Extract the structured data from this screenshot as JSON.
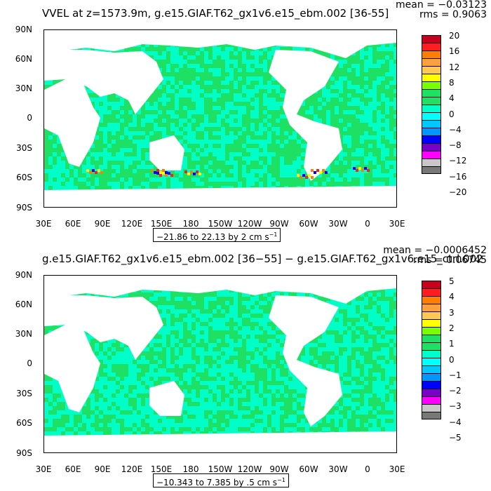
{
  "panels": [
    {
      "title": "VVEL at z=1573.9m, g.e15.GIAF.T62_gx1v6.e15_ebm.002 [36-55]",
      "mean": "mean = −0.03123",
      "rms": "rms = 0.9063",
      "range": "−21.86 to 22.13 by 2 cm s",
      "range_sup": "−1",
      "legend_labels": [
        "20",
        "16",
        "12",
        "8",
        "4",
        "0",
        "−4",
        "−8",
        "−12",
        "−16",
        "−20"
      ],
      "legend_colors": [
        "#c8001e",
        "#ff1e1e",
        "#ff7d00",
        "#ffa03c",
        "#ffc850",
        "#ffff00",
        "#78ff00",
        "#1ee164",
        "#1ee164",
        "#00ffc8",
        "#00ffff",
        "#00c8ff",
        "#0096ff",
        "#0000ff",
        "#7800c8",
        "#ff00ff",
        "#c8c8c8",
        "#787878"
      ],
      "accent_colors": [
        "#ffff00",
        "#ff7d00",
        "#0000ff",
        "#ff1e1e"
      ]
    },
    {
      "title": "g.e15.GIAF.T62_gx1v6.e15_ebm.002 [36−55] − g.e15.GIAF.T62_gx1v6.e15_ctrl.002",
      "mean": "mean = −0.0006452",
      "rms": "rms = 0.06745",
      "range": "−10.343 to 7.385 by .5 cm s",
      "range_sup": "−1",
      "legend_labels": [
        "5",
        "4",
        "3",
        "2",
        "1",
        "0",
        "−1",
        "−2",
        "−3",
        "−4",
        "−5"
      ],
      "legend_colors": [
        "#c8001e",
        "#ff1e1e",
        "#ff7d00",
        "#ffa03c",
        "#ffc850",
        "#ffff00",
        "#78ff00",
        "#1ee164",
        "#1ee164",
        "#00ffc8",
        "#00ffff",
        "#00c8ff",
        "#0096ff",
        "#0000ff",
        "#7800c8",
        "#ff00ff",
        "#c8c8c8",
        "#787878"
      ],
      "accent_colors": []
    }
  ],
  "lat_labels": [
    "90N",
    "60N",
    "30N",
    "0",
    "30S",
    "60S",
    "90S"
  ],
  "lon_labels": [
    "30E",
    "60E",
    "90E",
    "120E",
    "150E",
    "180",
    "150W",
    "120W",
    "90W",
    "60W",
    "30W",
    "0",
    "30E"
  ],
  "colors": {
    "ocean_green": "#1ee164",
    "ocean_cyan": "#00ffc8",
    "land": "#ffffff"
  }
}
